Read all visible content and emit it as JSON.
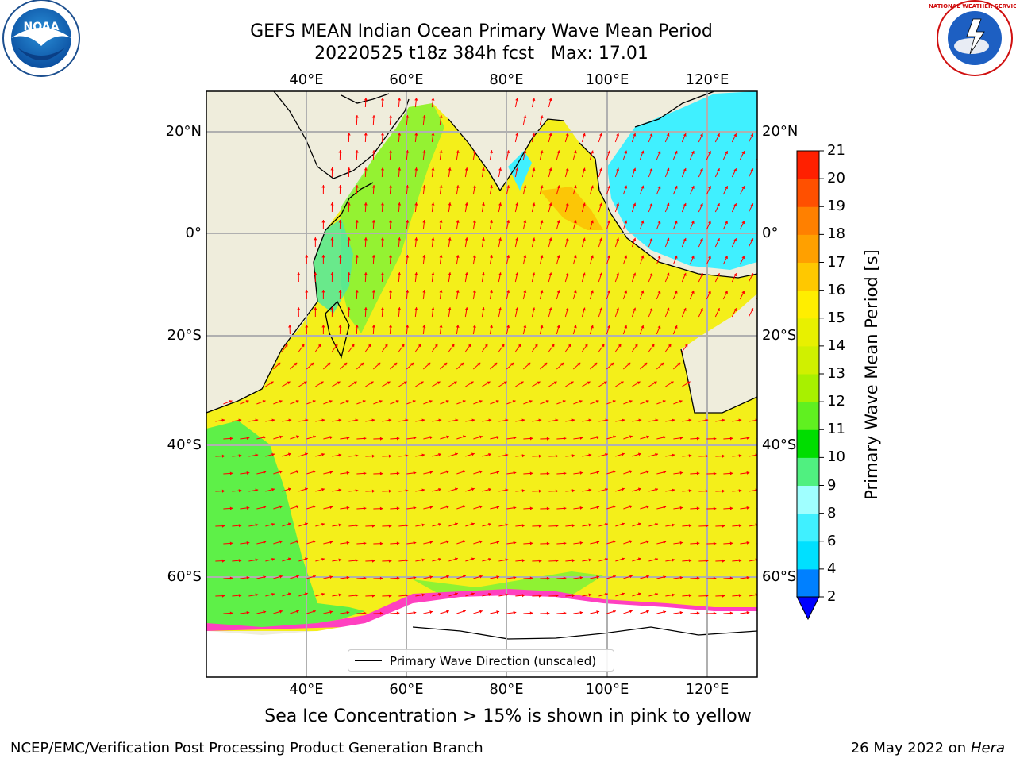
{
  "header": {
    "title_line1": "GEFS MEAN Indian Ocean Primary Wave Mean Period",
    "title_line2": "20220525 t18z 384h fcst   Max: 17.01"
  },
  "logos": {
    "left": "NOAA",
    "right": "NATIONAL WEATHER SERVICE"
  },
  "map": {
    "lon_ticks": [
      "40°E",
      "60°E",
      "80°E",
      "100°E",
      "120°E"
    ],
    "lat_ticks": [
      "20°N",
      "0°",
      "20°S",
      "40°S",
      "60°S"
    ],
    "legend_label": "Primary Wave Direction (unscaled)",
    "ocean_color": "#f4ef1a",
    "land_color": "#efeddc",
    "arrow_color": "#ff0000"
  },
  "colorbar": {
    "title": "Primary Wave Mean Period [s]",
    "levels": [
      "2",
      "4",
      "6",
      "8",
      "9",
      "10",
      "11",
      "12",
      "13",
      "14",
      "15",
      "16",
      "17",
      "18",
      "19",
      "20",
      "21"
    ],
    "colors": [
      "#0080ff",
      "#00e0ff",
      "#40f0ff",
      "#a0ffff",
      "#50f080",
      "#00dd00",
      "#60f020",
      "#a8f000",
      "#d0f000",
      "#e8f000",
      "#ffee00",
      "#ffc800",
      "#ffa000",
      "#ff8000",
      "#ff5000",
      "#ff2000"
    ],
    "under_color": "#0000ff"
  },
  "subtitle": "Sea Ice Concentration > 15% is shown in pink to yellow",
  "footer": {
    "left": "NCEP/EMC/Verification Post Processing Product Generation Branch",
    "right_date": "26 May 2022 on",
    "right_host": "Hera"
  }
}
